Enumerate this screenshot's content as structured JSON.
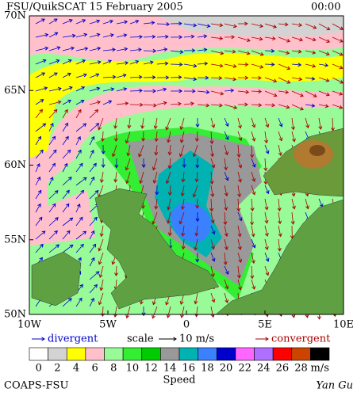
{
  "header": {
    "title": "FSU/QuikSCAT 15 February 2005",
    "time": "00:00"
  },
  "map": {
    "lat_labels": [
      "70N",
      "65N",
      "60N",
      "55N",
      "50N"
    ],
    "lon_labels": [
      "10W",
      "5W",
      "0",
      "5E",
      "10E"
    ]
  },
  "legend": {
    "divergent": "divergent",
    "scale": "scale",
    "scale_value": "10 m/s",
    "convergent": "convergent",
    "divergent_color": "#0000cc",
    "convergent_color": "#aa0000"
  },
  "colorbar": {
    "colors": [
      "#ffffff",
      "#d3d3d3",
      "#ffff00",
      "#ffc0cb",
      "#98fb98",
      "#33ee33",
      "#00cc00",
      "#999999",
      "#00b2b2",
      "#3a80ff",
      "#0000cc",
      "#ff66ff",
      "#b070ff",
      "#ff0000",
      "#cc4400",
      "#000000"
    ],
    "ticks": [
      0,
      2,
      4,
      6,
      8,
      10,
      12,
      14,
      16,
      18,
      20,
      22,
      24,
      26,
      28
    ],
    "unit": "m/s",
    "label": "Speed"
  },
  "footer": {
    "left": "COAPS-FSU",
    "right": "Yan Gu"
  }
}
